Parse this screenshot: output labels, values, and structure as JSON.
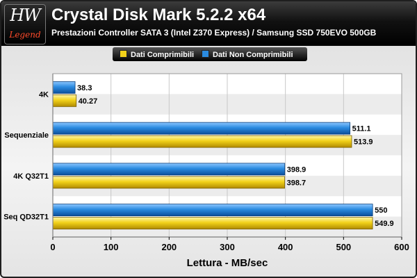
{
  "header": {
    "logo_text": "HW",
    "logo_sub": "Legend",
    "title": "Crystal Disk Mark 5.2.2 x64",
    "subtitle": "Prestazioni Controller SATA 3 (Intel Z370 Express) / Samsung SSD 750EVO 500GB"
  },
  "legend": {
    "compressible_label": "Dati Comprimibili",
    "incompressible_label": "Dati Non Comprimibili"
  },
  "colors": {
    "compressible": "#f2d21a",
    "incompressible": "#2b8be0",
    "band": "#ececec"
  },
  "chart_data": {
    "type": "bar",
    "orientation": "horizontal",
    "title": "Crystal Disk Mark 5.2.2 x64",
    "subtitle": "Prestazioni Controller SATA 3 (Intel Z370 Express) / Samsung SSD 750EVO 500GB",
    "xlabel": "Lettura - MB/sec",
    "ylabel": "",
    "xlim": [
      0,
      600
    ],
    "xticks": [
      0,
      100,
      200,
      300,
      400,
      500,
      600
    ],
    "categories": [
      "4K",
      "Sequenziale",
      "4K Q32T1",
      "Seq QD32T1"
    ],
    "series": [
      {
        "name": "Dati Non Comprimibili",
        "values": [
          38.3,
          511.1,
          398.9,
          550
        ]
      },
      {
        "name": "Dati Comprimibili",
        "values": [
          40.27,
          513.9,
          398.7,
          549.9
        ]
      }
    ],
    "value_labels": {
      "Dati Non Comprimibili": [
        "38.3",
        "511.1",
        "398.9",
        "550"
      ],
      "Dati Comprimibili": [
        "40.27",
        "513.9",
        "398.7",
        "549.9"
      ]
    },
    "grid": true,
    "legend_position": "top"
  }
}
